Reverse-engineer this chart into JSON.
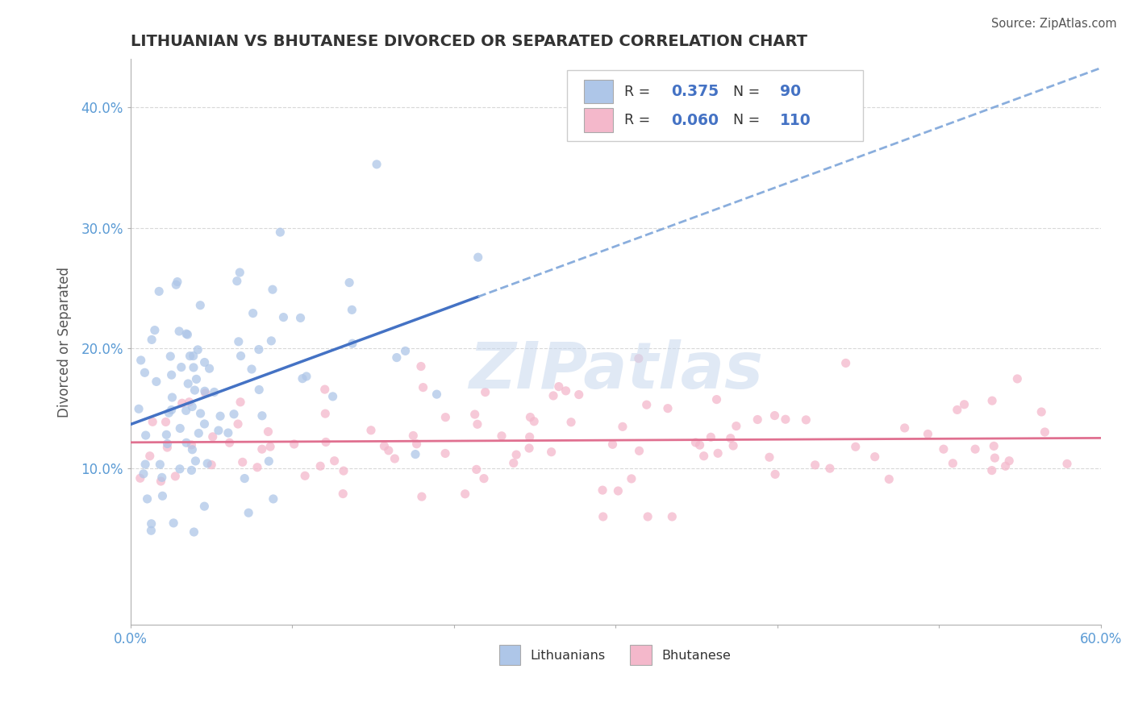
{
  "title": "LITHUANIAN VS BHUTANESE DIVORCED OR SEPARATED CORRELATION CHART",
  "source": "Source: ZipAtlas.com",
  "ylabel": "Divorced or Separated",
  "xlim": [
    0.0,
    0.6
  ],
  "ylim": [
    -0.03,
    0.44
  ],
  "y_ticks": [
    0.1,
    0.2,
    0.3,
    0.4
  ],
  "y_tick_labels": [
    "10.0%",
    "20.0%",
    "30.0%",
    "40.0%"
  ],
  "watermark": "ZIPatlas",
  "color_lit": "#aec6e8",
  "color_bhu": "#f4b8cb",
  "line_color_lit": "#4472c4",
  "line_color_bhu": "#e07090",
  "dashed_color": "#8aaedd",
  "background_color": "#ffffff",
  "grid_color": "#d8d8d8",
  "R_lit": 0.375,
  "N_lit": 90,
  "R_bhu": 0.06,
  "N_bhu": 110
}
